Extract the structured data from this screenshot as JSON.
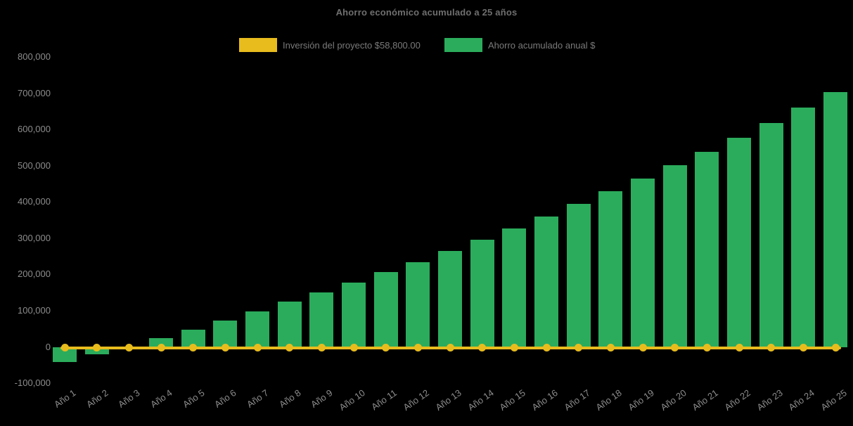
{
  "page": {
    "background": "#000000"
  },
  "chart_data": {
    "type": "bar",
    "title": "Ahorro económico acumulado a 25 años",
    "categories": [
      "Año 1",
      "Año 2",
      "Año 3",
      "Año 4",
      "Año 5",
      "Año 6",
      "Año 7",
      "Año 8",
      "Año 9",
      "Año 10",
      "Año 11",
      "Año 12",
      "Año 13",
      "Año 14",
      "Año 15",
      "Año 16",
      "Año 17",
      "Año 18",
      "Año 19",
      "Año 20",
      "Año 21",
      "Año 22",
      "Año 23",
      "Año 24",
      "Año 25"
    ],
    "series": [
      {
        "name": "Inversión del proyecto $58,800.00",
        "type": "line",
        "color": "#e8bc1d",
        "values": [
          0,
          0,
          0,
          0,
          0,
          0,
          0,
          0,
          0,
          0,
          0,
          0,
          0,
          0,
          0,
          0,
          0,
          0,
          0,
          0,
          0,
          0,
          0,
          0,
          0
        ]
      },
      {
        "name": "Ahorro acumulado anual $",
        "type": "bar",
        "color": "#2bac5c",
        "values": [
          -42000,
          -21000,
          2000,
          25000,
          48000,
          73000,
          98000,
          125000,
          150000,
          178000,
          206000,
          234000,
          265000,
          296000,
          326000,
          360000,
          394000,
          429000,
          465000,
          501000,
          539000,
          577000,
          617000,
          660000,
          704000
        ]
      }
    ],
    "xlabel": "",
    "ylabel": "",
    "ylim": [
      -100000,
      800000
    ],
    "y_ticks": [
      "800,000",
      "700,000",
      "600,000",
      "500,000",
      "400,000",
      "300,000",
      "200,000",
      "100,000",
      "0",
      "-100,000"
    ],
    "grid": false,
    "legend_position": "top",
    "text_color": "#8c8c8c",
    "background": "#000000"
  }
}
